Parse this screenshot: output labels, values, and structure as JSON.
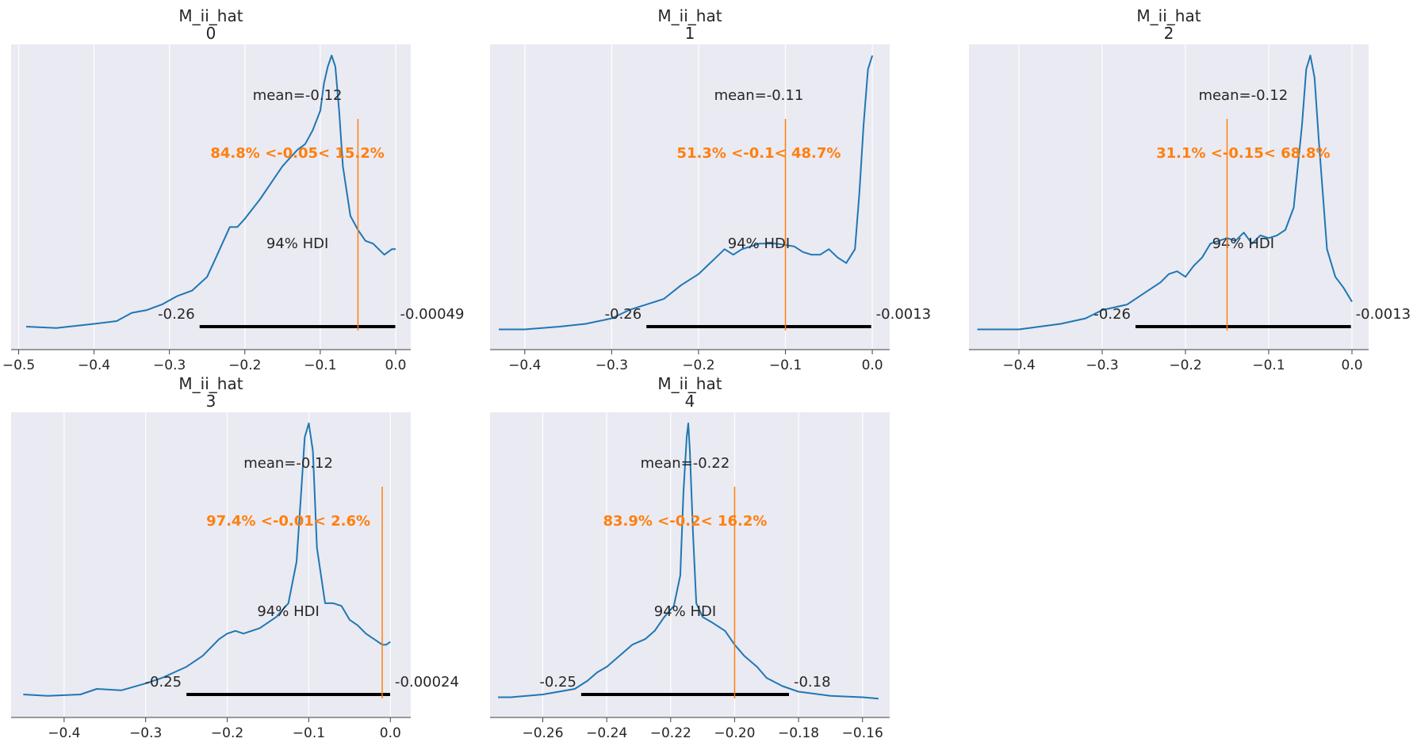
{
  "chart_data": [
    {
      "type": "line",
      "title": [
        "M_ii_hat",
        "0"
      ],
      "xlim": [
        -0.51,
        0.02
      ],
      "xticks": [
        -0.5,
        -0.4,
        -0.3,
        -0.2,
        -0.1,
        0.0
      ],
      "xtick_labels": [
        "−0.5",
        "−0.4",
        "−0.3",
        "−0.2",
        "−0.1",
        "0.0"
      ],
      "grid": true,
      "mean_label": "mean=-0.12",
      "ref_value": -0.05,
      "ref_label": "84.8% <-0.05< 15.2%",
      "hdi_label": "94% HDI",
      "hdi": [
        -0.26,
        -0.00049
      ],
      "hdi_low_label": "-0.26",
      "hdi_high_label": "-0.00049",
      "density": [
        [
          -0.49,
          0.02
        ],
        [
          -0.45,
          0.015
        ],
        [
          -0.4,
          0.03
        ],
        [
          -0.37,
          0.04
        ],
        [
          -0.35,
          0.07
        ],
        [
          -0.33,
          0.08
        ],
        [
          -0.31,
          0.1
        ],
        [
          -0.29,
          0.13
        ],
        [
          -0.27,
          0.15
        ],
        [
          -0.25,
          0.2
        ],
        [
          -0.24,
          0.26
        ],
        [
          -0.23,
          0.32
        ],
        [
          -0.22,
          0.38
        ],
        [
          -0.21,
          0.38
        ],
        [
          -0.2,
          0.41
        ],
        [
          -0.18,
          0.48
        ],
        [
          -0.16,
          0.56
        ],
        [
          -0.15,
          0.6
        ],
        [
          -0.14,
          0.63
        ],
        [
          -0.13,
          0.66
        ],
        [
          -0.12,
          0.68
        ],
        [
          -0.11,
          0.73
        ],
        [
          -0.1,
          0.8
        ],
        [
          -0.095,
          0.9
        ],
        [
          -0.09,
          0.96
        ],
        [
          -0.085,
          1.0
        ],
        [
          -0.08,
          0.96
        ],
        [
          -0.075,
          0.8
        ],
        [
          -0.07,
          0.6
        ],
        [
          -0.06,
          0.42
        ],
        [
          -0.05,
          0.37
        ],
        [
          -0.04,
          0.33
        ],
        [
          -0.03,
          0.32
        ],
        [
          -0.015,
          0.28
        ],
        [
          -0.005,
          0.3
        ],
        [
          0.0,
          0.3
        ]
      ]
    },
    {
      "type": "line",
      "title": [
        "M_ii_hat",
        "1"
      ],
      "xlim": [
        -0.44,
        0.02
      ],
      "xticks": [
        -0.4,
        -0.3,
        -0.2,
        -0.1,
        0.0
      ],
      "xtick_labels": [
        "−0.4",
        "−0.3",
        "−0.2",
        "−0.1",
        "0.0"
      ],
      "grid": true,
      "mean_label": "mean=-0.11",
      "ref_value": -0.1,
      "ref_label": "51.3% <-0.1< 48.7%",
      "hdi_label": "94% HDI",
      "hdi": [
        -0.26,
        -0.0013
      ],
      "hdi_low_label": "-0.26",
      "hdi_high_label": "-0.0013",
      "density": [
        [
          -0.43,
          0.01
        ],
        [
          -0.4,
          0.01
        ],
        [
          -0.36,
          0.02
        ],
        [
          -0.33,
          0.03
        ],
        [
          -0.3,
          0.05
        ],
        [
          -0.28,
          0.08
        ],
        [
          -0.26,
          0.1
        ],
        [
          -0.24,
          0.12
        ],
        [
          -0.22,
          0.17
        ],
        [
          -0.2,
          0.21
        ],
        [
          -0.18,
          0.27
        ],
        [
          -0.17,
          0.3
        ],
        [
          -0.16,
          0.28
        ],
        [
          -0.15,
          0.3
        ],
        [
          -0.13,
          0.32
        ],
        [
          -0.11,
          0.32
        ],
        [
          -0.09,
          0.31
        ],
        [
          -0.08,
          0.29
        ],
        [
          -0.07,
          0.28
        ],
        [
          -0.06,
          0.28
        ],
        [
          -0.05,
          0.3
        ],
        [
          -0.04,
          0.27
        ],
        [
          -0.03,
          0.25
        ],
        [
          -0.02,
          0.3
        ],
        [
          -0.015,
          0.5
        ],
        [
          -0.01,
          0.75
        ],
        [
          -0.005,
          0.95
        ],
        [
          0.0,
          1.0
        ]
      ]
    },
    {
      "type": "line",
      "title": [
        "M_ii_hat",
        "2"
      ],
      "xlim": [
        -0.46,
        0.02
      ],
      "xticks": [
        -0.4,
        -0.3,
        -0.2,
        -0.1,
        0.0
      ],
      "xtick_labels": [
        "−0.4",
        "−0.3",
        "−0.2",
        "−0.1",
        "0.0"
      ],
      "grid": true,
      "mean_label": "mean=-0.12",
      "ref_value": -0.15,
      "ref_label": "31.1% <-0.15< 68.8%",
      "hdi_label": "94% HDI",
      "hdi": [
        -0.26,
        -0.0013
      ],
      "hdi_low_label": "-0.26",
      "hdi_high_label": "-0.0013",
      "density": [
        [
          -0.45,
          0.01
        ],
        [
          -0.4,
          0.01
        ],
        [
          -0.35,
          0.03
        ],
        [
          -0.32,
          0.05
        ],
        [
          -0.3,
          0.08
        ],
        [
          -0.27,
          0.1
        ],
        [
          -0.25,
          0.14
        ],
        [
          -0.23,
          0.18
        ],
        [
          -0.22,
          0.21
        ],
        [
          -0.21,
          0.22
        ],
        [
          -0.2,
          0.2
        ],
        [
          -0.19,
          0.24
        ],
        [
          -0.18,
          0.27
        ],
        [
          -0.17,
          0.32
        ],
        [
          -0.16,
          0.33
        ],
        [
          -0.15,
          0.34
        ],
        [
          -0.14,
          0.33
        ],
        [
          -0.13,
          0.36
        ],
        [
          -0.12,
          0.32
        ],
        [
          -0.11,
          0.35
        ],
        [
          -0.1,
          0.34
        ],
        [
          -0.09,
          0.35
        ],
        [
          -0.08,
          0.37
        ],
        [
          -0.07,
          0.45
        ],
        [
          -0.06,
          0.75
        ],
        [
          -0.055,
          0.95
        ],
        [
          -0.05,
          1.0
        ],
        [
          -0.045,
          0.92
        ],
        [
          -0.04,
          0.7
        ],
        [
          -0.03,
          0.3
        ],
        [
          -0.02,
          0.2
        ],
        [
          -0.01,
          0.16
        ],
        [
          0.0,
          0.11
        ]
      ]
    },
    {
      "type": "line",
      "title": [
        "M_ii_hat",
        "3"
      ],
      "xlim": [
        -0.465,
        0.025
      ],
      "xticks": [
        -0.4,
        -0.3,
        -0.2,
        -0.1,
        0.0
      ],
      "xtick_labels": [
        "−0.4",
        "−0.3",
        "−0.2",
        "−0.1",
        "0.0"
      ],
      "grid": true,
      "mean_label": "mean=-0.12",
      "ref_value": -0.01,
      "ref_label": "97.4% <-0.01< 2.6%",
      "hdi_label": "94% HDI",
      "hdi": [
        -0.25,
        -0.00024
      ],
      "hdi_low_label": "-0.25",
      "hdi_high_label": "-0.00024",
      "density": [
        [
          -0.45,
          0.02
        ],
        [
          -0.42,
          0.015
        ],
        [
          -0.38,
          0.02
        ],
        [
          -0.36,
          0.04
        ],
        [
          -0.33,
          0.035
        ],
        [
          -0.3,
          0.06
        ],
        [
          -0.28,
          0.08
        ],
        [
          -0.25,
          0.12
        ],
        [
          -0.23,
          0.16
        ],
        [
          -0.21,
          0.22
        ],
        [
          -0.2,
          0.24
        ],
        [
          -0.19,
          0.25
        ],
        [
          -0.18,
          0.24
        ],
        [
          -0.16,
          0.26
        ],
        [
          -0.14,
          0.3
        ],
        [
          -0.125,
          0.35
        ],
        [
          -0.115,
          0.5
        ],
        [
          -0.11,
          0.72
        ],
        [
          -0.105,
          0.95
        ],
        [
          -0.1,
          1.0
        ],
        [
          -0.095,
          0.9
        ],
        [
          -0.09,
          0.55
        ],
        [
          -0.08,
          0.35
        ],
        [
          -0.07,
          0.35
        ],
        [
          -0.06,
          0.34
        ],
        [
          -0.05,
          0.29
        ],
        [
          -0.04,
          0.27
        ],
        [
          -0.03,
          0.24
        ],
        [
          -0.02,
          0.22
        ],
        [
          -0.01,
          0.2
        ],
        [
          -0.005,
          0.2
        ],
        [
          0.0,
          0.21
        ]
      ]
    },
    {
      "type": "line",
      "title": [
        "M_ii_hat",
        "4"
      ],
      "xlim": [
        -0.2765,
        -0.1515
      ],
      "xticks": [
        -0.26,
        -0.24,
        -0.22,
        -0.2,
        -0.18,
        -0.16
      ],
      "xtick_labels": [
        "−0.26",
        "−0.24",
        "−0.22",
        "−0.20",
        "−0.18",
        "−0.16"
      ],
      "grid": true,
      "mean_label": "mean=-0.22",
      "ref_value": -0.2,
      "ref_label": "83.9% <-0.2< 16.2%",
      "hdi_label": "94% HDI",
      "hdi": [
        -0.248,
        -0.183
      ],
      "hdi_low_label": "-0.25",
      "hdi_high_label": "-0.18",
      "density": [
        [
          -0.274,
          0.01
        ],
        [
          -0.27,
          0.01
        ],
        [
          -0.265,
          0.015
        ],
        [
          -0.26,
          0.02
        ],
        [
          -0.255,
          0.03
        ],
        [
          -0.25,
          0.04
        ],
        [
          -0.246,
          0.07
        ],
        [
          -0.243,
          0.1
        ],
        [
          -0.24,
          0.12
        ],
        [
          -0.235,
          0.17
        ],
        [
          -0.232,
          0.2
        ],
        [
          -0.228,
          0.22
        ],
        [
          -0.225,
          0.25
        ],
        [
          -0.222,
          0.3
        ],
        [
          -0.219,
          0.34
        ],
        [
          -0.217,
          0.45
        ],
        [
          -0.216,
          0.75
        ],
        [
          -0.215,
          0.95
        ],
        [
          -0.2145,
          1.0
        ],
        [
          -0.214,
          0.9
        ],
        [
          -0.213,
          0.6
        ],
        [
          -0.212,
          0.35
        ],
        [
          -0.21,
          0.3
        ],
        [
          -0.207,
          0.28
        ],
        [
          -0.203,
          0.25
        ],
        [
          -0.2,
          0.2
        ],
        [
          -0.197,
          0.16
        ],
        [
          -0.193,
          0.12
        ],
        [
          -0.19,
          0.08
        ],
        [
          -0.185,
          0.05
        ],
        [
          -0.18,
          0.03
        ],
        [
          -0.17,
          0.015
        ],
        [
          -0.16,
          0.01
        ],
        [
          -0.155,
          0.005
        ]
      ]
    }
  ]
}
